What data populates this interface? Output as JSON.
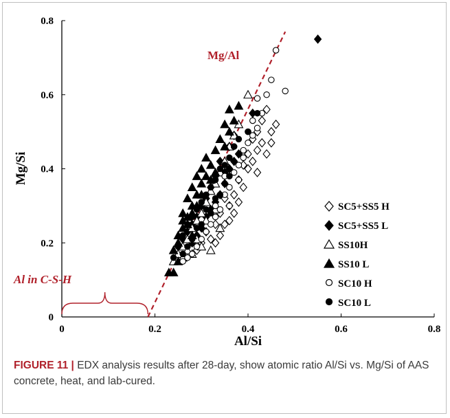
{
  "chart_data": {
    "type": "scatter",
    "title": "",
    "xlabel": "Al/Si",
    "ylabel": "Mg/Si",
    "xlim": [
      0,
      0.8
    ],
    "ylim": [
      0,
      0.8
    ],
    "x_ticks": [
      "0",
      "0.2",
      "0.4",
      "0.6",
      "0.8"
    ],
    "y_ticks": [
      "0",
      "0.2",
      "0.4",
      "0.6",
      "0.8"
    ],
    "grid": false,
    "legend_placement": "right",
    "annotations": {
      "ratio_line_label": "Mg/Al",
      "brace_label": "Al in C-S-H",
      "ratio_line": {
        "x": [
          0.185,
          0.48
        ],
        "y": [
          0,
          0.77
        ],
        "color": "#b0202a",
        "style": "dashed"
      },
      "brace_range": [
        0,
        0.185
      ]
    },
    "series": [
      {
        "name": "SC5+SS5 H",
        "marker": "diamond-open",
        "points": [
          [
            0.46,
            0.52
          ],
          [
            0.44,
            0.56
          ],
          [
            0.45,
            0.5
          ],
          [
            0.43,
            0.47
          ],
          [
            0.42,
            0.45
          ],
          [
            0.44,
            0.44
          ],
          [
            0.41,
            0.42
          ],
          [
            0.42,
            0.39
          ],
          [
            0.4,
            0.4
          ],
          [
            0.39,
            0.35
          ],
          [
            0.43,
            0.53
          ],
          [
            0.45,
            0.47
          ],
          [
            0.38,
            0.31
          ],
          [
            0.37,
            0.28
          ],
          [
            0.36,
            0.26
          ],
          [
            0.35,
            0.25
          ],
          [
            0.34,
            0.22
          ],
          [
            0.33,
            0.2
          ],
          [
            0.32,
            0.21
          ],
          [
            0.36,
            0.3
          ],
          [
            0.37,
            0.33
          ],
          [
            0.38,
            0.37
          ],
          [
            0.4,
            0.44
          ],
          [
            0.41,
            0.48
          ],
          [
            0.39,
            0.41
          ],
          [
            0.34,
            0.28
          ],
          [
            0.31,
            0.23
          ],
          [
            0.3,
            0.2
          ],
          [
            0.29,
            0.18
          ],
          [
            0.33,
            0.25
          ],
          [
            0.35,
            0.32
          ],
          [
            0.42,
            0.5
          ]
        ]
      },
      {
        "name": "SC5+SS5 L",
        "marker": "diamond-filled",
        "points": [
          [
            0.55,
            0.75
          ],
          [
            0.41,
            0.55
          ],
          [
            0.37,
            0.49
          ],
          [
            0.36,
            0.46
          ],
          [
            0.34,
            0.42
          ],
          [
            0.33,
            0.38
          ],
          [
            0.32,
            0.35
          ],
          [
            0.31,
            0.32
          ],
          [
            0.3,
            0.3
          ],
          [
            0.29,
            0.27
          ],
          [
            0.28,
            0.25
          ],
          [
            0.27,
            0.23
          ],
          [
            0.26,
            0.21
          ],
          [
            0.25,
            0.19
          ],
          [
            0.33,
            0.31
          ],
          [
            0.35,
            0.36
          ],
          [
            0.34,
            0.33
          ],
          [
            0.32,
            0.29
          ],
          [
            0.31,
            0.27
          ],
          [
            0.3,
            0.24
          ],
          [
            0.29,
            0.22
          ],
          [
            0.28,
            0.2
          ],
          [
            0.38,
            0.44
          ],
          [
            0.36,
            0.4
          ],
          [
            0.37,
            0.42
          ],
          [
            0.35,
            0.39
          ]
        ]
      },
      {
        "name": "SS10H",
        "marker": "triangle-open",
        "points": [
          [
            0.4,
            0.6
          ],
          [
            0.38,
            0.52
          ],
          [
            0.36,
            0.46
          ],
          [
            0.35,
            0.42
          ],
          [
            0.34,
            0.39
          ],
          [
            0.33,
            0.36
          ],
          [
            0.32,
            0.34
          ],
          [
            0.31,
            0.31
          ],
          [
            0.3,
            0.28
          ],
          [
            0.29,
            0.26
          ],
          [
            0.28,
            0.24
          ],
          [
            0.27,
            0.21
          ],
          [
            0.26,
            0.19
          ],
          [
            0.25,
            0.17
          ],
          [
            0.24,
            0.15
          ],
          [
            0.26,
            0.16
          ],
          [
            0.28,
            0.17
          ],
          [
            0.3,
            0.19
          ],
          [
            0.32,
            0.18
          ],
          [
            0.34,
            0.24
          ],
          [
            0.33,
            0.29
          ],
          [
            0.31,
            0.26
          ],
          [
            0.29,
            0.21
          ],
          [
            0.27,
            0.18
          ],
          [
            0.37,
            0.49
          ]
        ]
      },
      {
        "name": "SS10 L",
        "marker": "triangle-filled",
        "points": [
          [
            0.23,
            0.12
          ],
          [
            0.24,
            0.12
          ],
          [
            0.25,
            0.15
          ],
          [
            0.25,
            0.2
          ],
          [
            0.26,
            0.24
          ],
          [
            0.27,
            0.27
          ],
          [
            0.27,
            0.32
          ],
          [
            0.28,
            0.3
          ],
          [
            0.28,
            0.35
          ],
          [
            0.29,
            0.33
          ],
          [
            0.29,
            0.38
          ],
          [
            0.3,
            0.4
          ],
          [
            0.3,
            0.36
          ],
          [
            0.31,
            0.43
          ],
          [
            0.32,
            0.41
          ],
          [
            0.33,
            0.45
          ],
          [
            0.34,
            0.48
          ],
          [
            0.35,
            0.52
          ],
          [
            0.36,
            0.56
          ],
          [
            0.38,
            0.57
          ],
          [
            0.37,
            0.53
          ],
          [
            0.26,
            0.28
          ],
          [
            0.27,
            0.25
          ],
          [
            0.28,
            0.28
          ],
          [
            0.29,
            0.3
          ],
          [
            0.3,
            0.33
          ],
          [
            0.31,
            0.38
          ],
          [
            0.32,
            0.37
          ],
          [
            0.25,
            0.22
          ],
          [
            0.24,
            0.18
          ],
          [
            0.26,
            0.26
          ],
          [
            0.28,
            0.22
          ],
          [
            0.33,
            0.39
          ],
          [
            0.35,
            0.46
          ],
          [
            0.36,
            0.5
          ]
        ]
      },
      {
        "name": "SC10 H",
        "marker": "circle-open",
        "points": [
          [
            0.46,
            0.72
          ],
          [
            0.48,
            0.61
          ],
          [
            0.45,
            0.64
          ],
          [
            0.44,
            0.6
          ],
          [
            0.42,
            0.59
          ],
          [
            0.43,
            0.55
          ],
          [
            0.42,
            0.51
          ],
          [
            0.41,
            0.49
          ],
          [
            0.4,
            0.47
          ],
          [
            0.39,
            0.45
          ],
          [
            0.39,
            0.43
          ],
          [
            0.38,
            0.41
          ],
          [
            0.37,
            0.39
          ],
          [
            0.38,
            0.37
          ],
          [
            0.36,
            0.35
          ],
          [
            0.35,
            0.33
          ],
          [
            0.36,
            0.3
          ],
          [
            0.34,
            0.29
          ],
          [
            0.33,
            0.27
          ],
          [
            0.32,
            0.25
          ],
          [
            0.31,
            0.23
          ],
          [
            0.3,
            0.21
          ],
          [
            0.29,
            0.19
          ],
          [
            0.28,
            0.17
          ],
          [
            0.27,
            0.16
          ],
          [
            0.26,
            0.15
          ],
          [
            0.41,
            0.53
          ],
          [
            0.4,
            0.5
          ],
          [
            0.37,
            0.46
          ],
          [
            0.35,
            0.38
          ],
          [
            0.33,
            0.3
          ]
        ]
      },
      {
        "name": "SC10 L",
        "marker": "circle-filled",
        "points": [
          [
            0.42,
            0.55
          ],
          [
            0.4,
            0.5
          ],
          [
            0.38,
            0.48
          ],
          [
            0.37,
            0.46
          ],
          [
            0.36,
            0.43
          ],
          [
            0.35,
            0.41
          ],
          [
            0.34,
            0.4
          ],
          [
            0.33,
            0.37
          ],
          [
            0.32,
            0.35
          ],
          [
            0.31,
            0.33
          ],
          [
            0.3,
            0.31
          ],
          [
            0.29,
            0.29
          ],
          [
            0.28,
            0.27
          ],
          [
            0.27,
            0.25
          ],
          [
            0.26,
            0.22
          ],
          [
            0.25,
            0.19
          ],
          [
            0.24,
            0.16
          ],
          [
            0.3,
            0.25
          ],
          [
            0.32,
            0.28
          ],
          [
            0.34,
            0.33
          ],
          [
            0.36,
            0.38
          ],
          [
            0.28,
            0.21
          ],
          [
            0.27,
            0.19
          ],
          [
            0.31,
            0.29
          ],
          [
            0.33,
            0.32
          ],
          [
            0.35,
            0.36
          ],
          [
            0.29,
            0.24
          ],
          [
            0.26,
            0.17
          ]
        ]
      }
    ],
    "colors": {
      "marker": "#000000",
      "annotation": "#b0202a",
      "axis": "#000000"
    }
  },
  "caption": {
    "label": "FIGURE 11 |",
    "text": " EDX analysis results after 28-day, show atomic ratio Al/Si vs. Mg/Si of AAS concrete, heat, and lab-cured."
  }
}
